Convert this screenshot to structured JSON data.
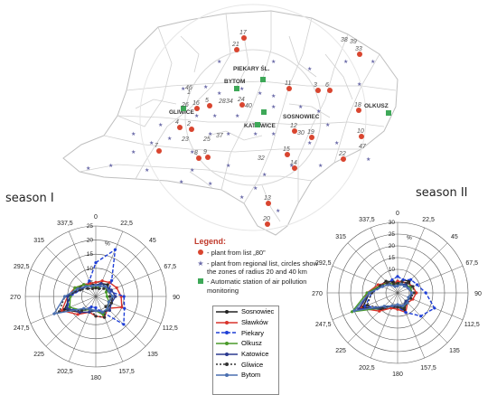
{
  "seasons": {
    "left": "season I",
    "right": "season II"
  },
  "map": {
    "cities": [
      "PIEKARY ŚL.",
      "BYTOM",
      "GLIWICE",
      "SOSNOWIEC",
      "KATOWICE",
      "OLKUSZ"
    ],
    "plant_labels": [
      {
        "t": "17"
      },
      {
        "t": "21"
      },
      {
        "t": "38"
      },
      {
        "t": "39"
      },
      {
        "t": "33"
      },
      {
        "t": "11"
      },
      {
        "t": "3"
      },
      {
        "t": "6"
      },
      {
        "t": "18"
      },
      {
        "t": "1"
      },
      {
        "t": "16"
      },
      {
        "t": "5"
      },
      {
        "t": "28"
      },
      {
        "t": "24"
      },
      {
        "t": "34"
      },
      {
        "t": "12"
      },
      {
        "t": "19"
      },
      {
        "t": "15"
      },
      {
        "t": "14"
      },
      {
        "t": "2"
      },
      {
        "t": "4"
      },
      {
        "t": "7"
      },
      {
        "t": "8"
      },
      {
        "t": "9"
      },
      {
        "t": "10"
      },
      {
        "t": "22"
      },
      {
        "t": "13"
      },
      {
        "t": "20"
      },
      {
        "t": "46"
      },
      {
        "t": "23"
      },
      {
        "t": "26"
      },
      {
        "t": "25"
      },
      {
        "t": "40"
      },
      {
        "t": "32"
      },
      {
        "t": "37"
      },
      {
        "t": "30"
      },
      {
        "t": "47"
      }
    ]
  },
  "legend": {
    "title": "Legend:",
    "items": [
      {
        "marker": "red-dot",
        "label": "- plant from list „80”"
      },
      {
        "marker": "star",
        "label": "- plant from regional list, circles show the zones of radius 20 and 40 km"
      },
      {
        "marker": "green-square",
        "label": "- Automatic station of air pollution monitoring"
      }
    ]
  },
  "series_legend": [
    {
      "name": "Sosnowiec",
      "color": "#222222",
      "dash": "none"
    },
    {
      "name": "Sławków",
      "color": "#d9342b",
      "dash": "none"
    },
    {
      "name": "Piekary",
      "color": "#1f3fd6",
      "dash": "4,2"
    },
    {
      "name": "Olkusz",
      "color": "#4a9a2a",
      "dash": "none"
    },
    {
      "name": "Katowice",
      "color": "#2b3a8f",
      "dash": "none"
    },
    {
      "name": "Gliwice",
      "color": "#333333",
      "dash": "2,2"
    },
    {
      "name": "Bytom",
      "color": "#4a6fb0",
      "dash": "none"
    }
  ],
  "chart_data": [
    {
      "type": "radar",
      "title": "season I",
      "unit": "%",
      "directions": [
        "0",
        "22,5",
        "45",
        "67,5",
        "90",
        "112,5",
        "135",
        "157,5",
        "180",
        "202,5",
        "225",
        "247,5",
        "270",
        "292,5",
        "315",
        "337,5"
      ],
      "rticks": [
        "5",
        "10",
        "15",
        "20",
        "25"
      ],
      "rlim": [
        0,
        25
      ],
      "series": [
        {
          "name": "Sosnowiec",
          "values": [
            4,
            5,
            6,
            5,
            6,
            6,
            6,
            7,
            5,
            6,
            8,
            12,
            9,
            7,
            6,
            5
          ]
        },
        {
          "name": "Sławków",
          "values": [
            5,
            6,
            7,
            8,
            9,
            10,
            6,
            8,
            7,
            6,
            9,
            13,
            10,
            8,
            6,
            5
          ]
        },
        {
          "name": "Piekary",
          "values": [
            12,
            18,
            8,
            5,
            10,
            11,
            14,
            6,
            4,
            4,
            7,
            11,
            9,
            6,
            5,
            6
          ]
        },
        {
          "name": "Olkusz",
          "values": [
            3,
            4,
            5,
            4,
            4,
            5,
            6,
            7,
            5,
            5,
            7,
            10,
            9,
            8,
            6,
            4
          ]
        },
        {
          "name": "Katowice",
          "values": [
            4,
            5,
            5,
            6,
            7,
            6,
            7,
            6,
            5,
            6,
            8,
            11,
            10,
            6,
            5,
            4
          ]
        },
        {
          "name": "Gliwice",
          "values": [
            3,
            3,
            4,
            5,
            5,
            6,
            5,
            8,
            7,
            5,
            7,
            14,
            11,
            6,
            4,
            3
          ]
        },
        {
          "name": "Bytom",
          "values": [
            4,
            4,
            5,
            5,
            6,
            5,
            6,
            6,
            5,
            5,
            6,
            16,
            11,
            7,
            5,
            4
          ]
        }
      ]
    },
    {
      "type": "radar",
      "title": "season II",
      "unit": "%",
      "directions": [
        "0",
        "22,5",
        "45",
        "67,5",
        "90",
        "112,5",
        "135",
        "157,5",
        "180",
        "202,5",
        "225",
        "247,5",
        "270",
        "292,5",
        "315",
        "337,5"
      ],
      "rticks": [
        "5",
        "10",
        "15",
        "20",
        "25",
        "30"
      ],
      "rlim": [
        0,
        30
      ],
      "series": [
        {
          "name": "Sosnowiec",
          "values": [
            4,
            6,
            7,
            6,
            6,
            6,
            5,
            8,
            6,
            7,
            10,
            16,
            12,
            8,
            7,
            5
          ]
        },
        {
          "name": "Sławków",
          "values": [
            5,
            5,
            6,
            7,
            8,
            7,
            6,
            9,
            7,
            7,
            11,
            17,
            13,
            9,
            6,
            4
          ]
        },
        {
          "name": "Piekary",
          "values": [
            7,
            6,
            8,
            9,
            12,
            17,
            14,
            9,
            6,
            6,
            9,
            15,
            11,
            7,
            6,
            6
          ]
        },
        {
          "name": "Olkusz",
          "values": [
            4,
            4,
            5,
            6,
            6,
            6,
            5,
            7,
            6,
            6,
            9,
            21,
            13,
            8,
            6,
            4
          ]
        },
        {
          "name": "Katowice",
          "values": [
            3,
            4,
            5,
            5,
            6,
            6,
            5,
            6,
            6,
            6,
            9,
            18,
            12,
            7,
            5,
            3
          ]
        },
        {
          "name": "Gliwice",
          "values": [
            4,
            5,
            6,
            7,
            7,
            6,
            6,
            7,
            6,
            6,
            9,
            14,
            11,
            8,
            6,
            4
          ]
        },
        {
          "name": "Bytom",
          "values": [
            3,
            4,
            4,
            5,
            6,
            5,
            6,
            6,
            5,
            6,
            8,
            20,
            12,
            7,
            5,
            3
          ]
        }
      ]
    }
  ]
}
